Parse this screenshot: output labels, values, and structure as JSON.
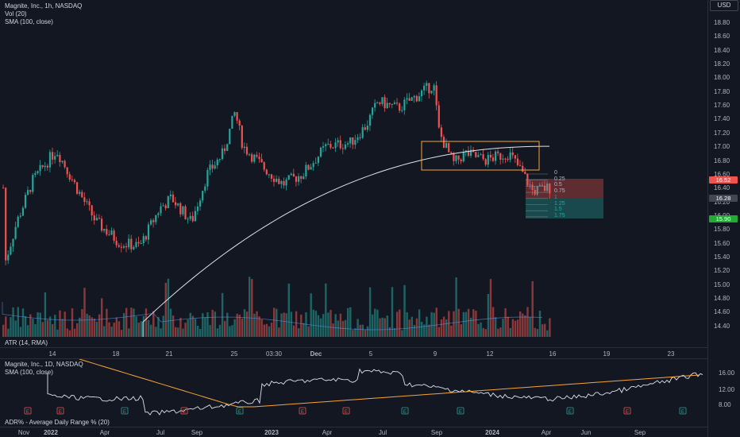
{
  "legend": {
    "symbol": "Magnite, Inc., 1h, NASDAQ",
    "volume": "Vol (20)",
    "sma": "SMA (100, close)",
    "atr": "ATR (14, RMA)",
    "mini_symbol": "Magnite, Inc., 1D, NASDAQ",
    "mini_sma": "SMA (100, close)",
    "adr": "ADR% - Average Daily Range % (20)"
  },
  "price_axis": {
    "currency": "USD",
    "ticks": [
      "18.80",
      "18.60",
      "18.40",
      "18.20",
      "18.00",
      "17.80",
      "17.60",
      "17.40",
      "17.20",
      "17.00",
      "16.80",
      "16.60",
      "16.40",
      "16.20",
      "16.00",
      "15.80",
      "15.60",
      "15.40",
      "15.20",
      "15.00",
      "14.80",
      "14.60",
      "14.40"
    ],
    "badge_red": "16.52",
    "badge_gray": "16.28",
    "badge_green": "15.90"
  },
  "mini_axis": {
    "ticks": [
      "16.00",
      "12.00",
      "8.00"
    ]
  },
  "time_axis": {
    "ticks": [
      "14",
      "18",
      "21",
      "25",
      "03:30",
      "Dec",
      "5",
      "9",
      "12",
      "16",
      "19",
      "23"
    ]
  },
  "bottom_axis": {
    "ticks": [
      "Nov",
      "2022",
      "Apr",
      "Jul",
      "Sep",
      "2023",
      "Apr",
      "Jul",
      "Sep",
      "2024",
      "Apr",
      "Jun",
      "Sep"
    ]
  },
  "fib": {
    "levels": [
      "0",
      "0.25",
      "0.5",
      "0.75",
      "1",
      "1.25",
      "1.5",
      "1.75"
    ]
  },
  "earnings_markers": [
    "E",
    "E",
    "E",
    "E",
    "E",
    "E",
    "E",
    "E",
    "E",
    "E",
    "E",
    "E"
  ],
  "colors": {
    "up": "#26a69a",
    "down": "#ef5350",
    "background": "#131722",
    "sma": "#e0e3eb",
    "mini_sma": "#f7a43a"
  }
}
